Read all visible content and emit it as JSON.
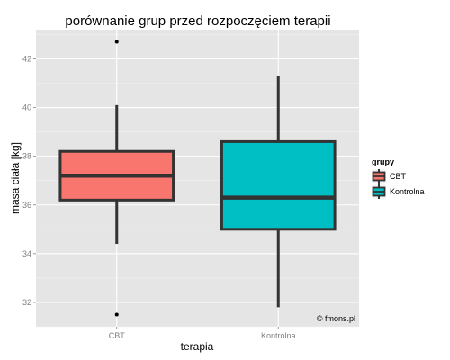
{
  "chart_data": {
    "type": "boxplot",
    "title": "porównanie grup przed rozpoczęciem terapii",
    "xlabel": "terapia",
    "ylabel": "masa ciała [kg]",
    "categories": [
      "CBT",
      "Kontrolna"
    ],
    "ylim": [
      31,
      43.2
    ],
    "yticks": [
      32,
      34,
      36,
      38,
      40,
      42
    ],
    "boxes": [
      {
        "category": "CBT",
        "color": "#F8766D",
        "min": 34.4,
        "q1": 36.2,
        "median": 37.2,
        "q3": 38.2,
        "max": 40.1,
        "outliers": [
          42.7,
          31.5
        ]
      },
      {
        "category": "Kontrolna",
        "color": "#00BFC4",
        "min": 31.8,
        "q1": 35.0,
        "median": 36.3,
        "q3": 38.6,
        "max": 41.3,
        "outliers": []
      }
    ],
    "legend": {
      "title": "grupy",
      "position": "right",
      "entries": [
        {
          "label": "CBT",
          "color": "#F8766D"
        },
        {
          "label": "Kontrolna",
          "color": "#00BFC4"
        }
      ]
    },
    "grid": true,
    "panel_background": "#E5E5E5",
    "watermark": "© fmons.pl"
  }
}
